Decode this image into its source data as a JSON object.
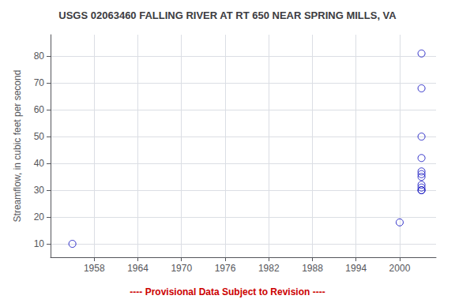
{
  "chart_data": {
    "type": "scatter",
    "title": "USGS 02063460 FALLING RIVER AT RT 650 NEAR SPRING MILLS, VA",
    "ylabel": "Streamflow, in cubic feet per second",
    "annotations": [
      {
        "text": "---- Provisional Data Subject to Revision ----",
        "color": "#cc0000"
      }
    ],
    "x": [
      1955,
      2000,
      2003,
      2003,
      2003,
      2003,
      2003,
      2003,
      2003,
      2003,
      2003,
      2003,
      2003
    ],
    "values": [
      10,
      18,
      81,
      68,
      50,
      42,
      37,
      36,
      35,
      32,
      31,
      30,
      30
    ],
    "color": "#0000bb",
    "marker": "open_circle",
    "xlim": [
      1952,
      2005
    ],
    "xticks": [
      1958,
      1964,
      1970,
      1976,
      1982,
      1988,
      1994,
      2000
    ],
    "ylim": [
      5,
      88
    ],
    "yticks": [
      10,
      20,
      30,
      40,
      50,
      60,
      70,
      80
    ],
    "grid": true
  }
}
